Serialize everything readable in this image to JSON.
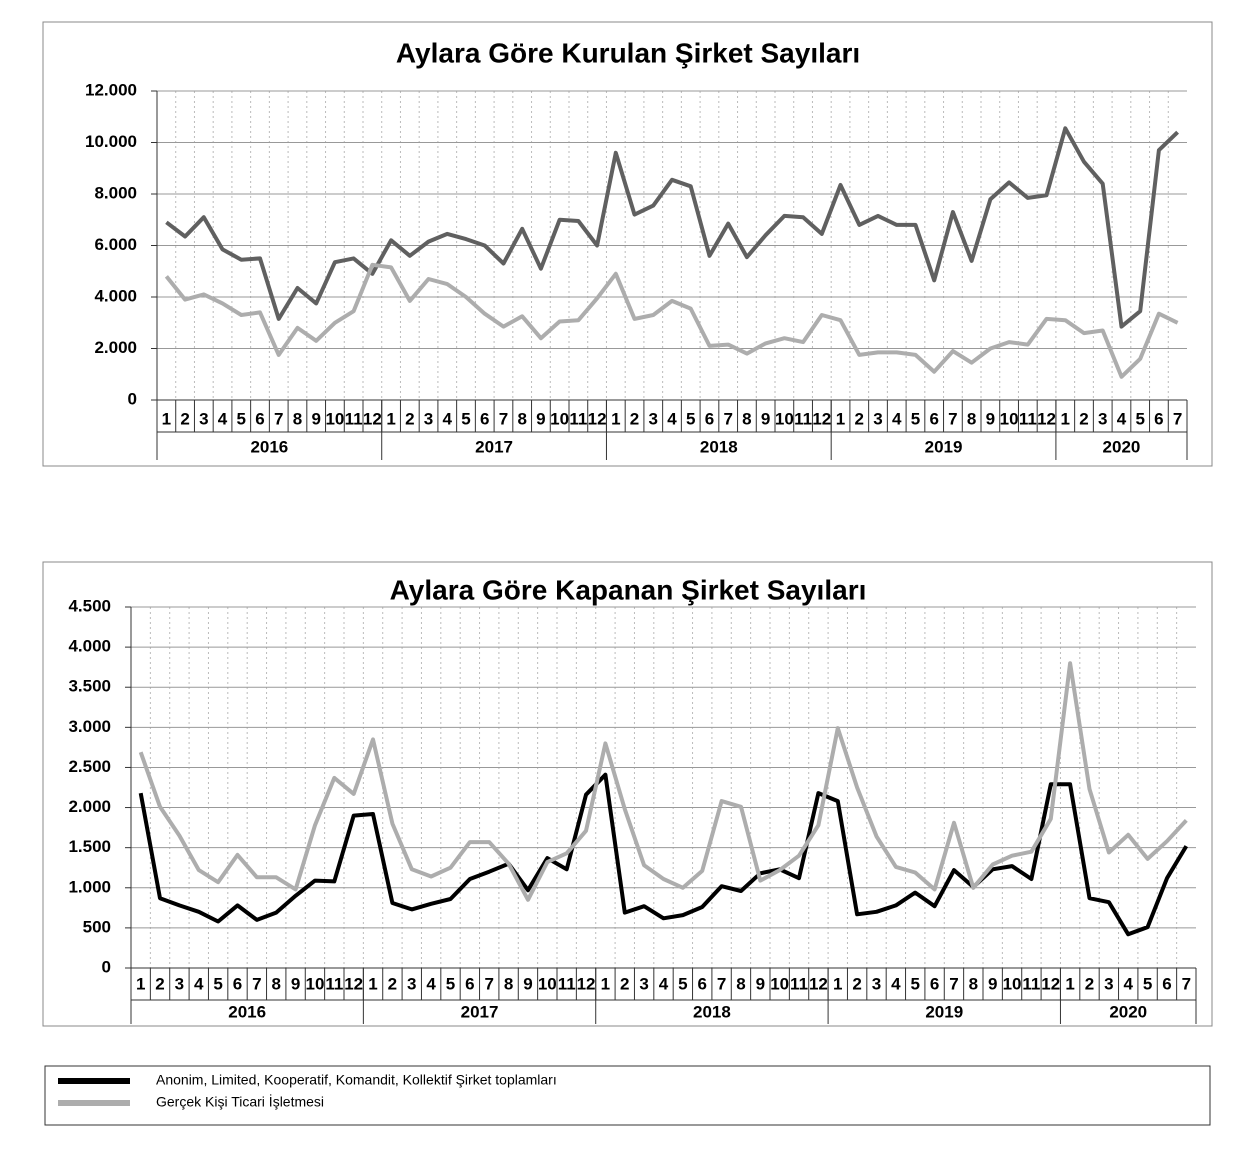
{
  "chart_data": [
    {
      "type": "line",
      "title": "Aylara Göre Kurulan Şirket Sayıları",
      "categories": [
        "1",
        "2",
        "3",
        "4",
        "5",
        "6",
        "7",
        "8",
        "9",
        "10",
        "11",
        "12",
        "1",
        "2",
        "3",
        "4",
        "5",
        "6",
        "7",
        "8",
        "9",
        "10",
        "11",
        "12",
        "1",
        "2",
        "3",
        "4",
        "5",
        "6",
        "7",
        "8",
        "9",
        "10",
        "11",
        "12",
        "1",
        "2",
        "3",
        "4",
        "5",
        "6",
        "7",
        "8",
        "9",
        "10",
        "11",
        "12",
        "1",
        "2",
        "3",
        "4",
        "5",
        "6",
        "7"
      ],
      "years": [
        "2016",
        "2017",
        "2018",
        "2019",
        "2020"
      ],
      "ylim": [
        0,
        12000
      ],
      "yticks": [
        0,
        {
          "value": 2000,
          "label": "2.000"
        },
        {
          "value": 4000,
          "label": "4.000"
        },
        {
          "value": 6000,
          "label": "6.000"
        },
        {
          "value": 8000,
          "label": "8.000"
        },
        {
          "value": 10000,
          "label": "10.000"
        },
        {
          "value": 12000,
          "label": "12.000"
        }
      ],
      "grid": true,
      "series": [
        {
          "color": "#606060",
          "values": [
            6900,
            6350,
            7100,
            5850,
            5450,
            5500,
            3150,
            4350,
            3750,
            5350,
            5500,
            4900,
            6200,
            5600,
            6150,
            6450,
            6250,
            6000,
            5300,
            6650,
            5100,
            7000,
            6950,
            6000,
            9600,
            7200,
            7550,
            8550,
            8300,
            5600,
            6850,
            5550,
            6400,
            7150,
            7100,
            6450,
            8350,
            6800,
            7150,
            6800,
            6800,
            4650,
            7300,
            5400,
            7800,
            8450,
            7850,
            7950,
            10550,
            9250,
            8400,
            2850,
            3450,
            9700,
            10400
          ]
        },
        {
          "color": "#adadad",
          "values": [
            4800,
            3900,
            4100,
            3750,
            3300,
            3400,
            1750,
            2800,
            2300,
            3000,
            3450,
            5250,
            5150,
            3850,
            4700,
            4500,
            4000,
            3350,
            2850,
            3250,
            2400,
            3050,
            3100,
            3950,
            4900,
            3150,
            3300,
            3850,
            3550,
            2100,
            2150,
            1800,
            2200,
            2400,
            2250,
            3300,
            3100,
            1750,
            1850,
            1850,
            1750,
            1100,
            1900,
            1450,
            2000,
            2250,
            2150,
            3150,
            3100,
            2600,
            2700,
            900,
            1600,
            3350,
            3000
          ]
        }
      ]
    },
    {
      "type": "line",
      "title": "Aylara Göre Kapanan Şirket Sayıları",
      "categories": [
        "1",
        "2",
        "3",
        "4",
        "5",
        "6",
        "7",
        "8",
        "9",
        "10",
        "11",
        "12",
        "1",
        "2",
        "3",
        "4",
        "5",
        "6",
        "7",
        "8",
        "9",
        "10",
        "11",
        "12",
        "1",
        "2",
        "3",
        "4",
        "5",
        "6",
        "7",
        "8",
        "9",
        "10",
        "11",
        "12",
        "1",
        "2",
        "3",
        "4",
        "5",
        "6",
        "7",
        "8",
        "9",
        "10",
        "11",
        "12",
        "1",
        "2",
        "3",
        "4",
        "5",
        "6",
        "7"
      ],
      "years": [
        "2016",
        "2017",
        "2018",
        "2019",
        "2020"
      ],
      "ylim": [
        0,
        4500
      ],
      "yticks": [
        0,
        500,
        {
          "value": 1000,
          "label": "1.000"
        },
        {
          "value": 1500,
          "label": "1.500"
        },
        {
          "value": 2000,
          "label": "2.000"
        },
        {
          "value": 2500,
          "label": "2.500"
        },
        {
          "value": 3000,
          "label": "3.000"
        },
        {
          "value": 3500,
          "label": "3.500"
        },
        {
          "value": 4000,
          "label": "4.000"
        },
        {
          "value": 4500,
          "label": "4.500"
        }
      ],
      "grid": true,
      "series": [
        {
          "name": "Anonim, Limited, Kooperatif, Komandit, Kollektif  Şirket toplamları",
          "color": "#000000",
          "values": [
            2180,
            870,
            780,
            700,
            580,
            780,
            600,
            690,
            900,
            1090,
            1080,
            1900,
            1920,
            810,
            730,
            800,
            860,
            1110,
            1200,
            1300,
            970,
            1370,
            1230,
            2160,
            2410,
            690,
            770,
            620,
            660,
            760,
            1020,
            960,
            1180,
            1230,
            1120,
            2180,
            2080,
            670,
            700,
            780,
            940,
            770,
            1220,
            1010,
            1230,
            1270,
            1110,
            2290,
            2290,
            870,
            820,
            420,
            510,
            1120,
            1520
          ]
        },
        {
          "name": "Gerçek Kişi Ticari İşletmesi",
          "color": "#adadad",
          "values": [
            2690,
            2010,
            1650,
            1220,
            1070,
            1410,
            1130,
            1130,
            980,
            1780,
            2370,
            2170,
            2850,
            1800,
            1230,
            1140,
            1250,
            1570,
            1570,
            1300,
            850,
            1320,
            1430,
            1710,
            2800,
            1980,
            1280,
            1110,
            1000,
            1210,
            2080,
            2010,
            1090,
            1220,
            1400,
            1780,
            2990,
            2250,
            1640,
            1260,
            1190,
            980,
            1810,
            1000,
            1290,
            1400,
            1450,
            1860,
            3800,
            2230,
            1440,
            1660,
            1360,
            1580,
            1840
          ]
        }
      ]
    }
  ]
}
